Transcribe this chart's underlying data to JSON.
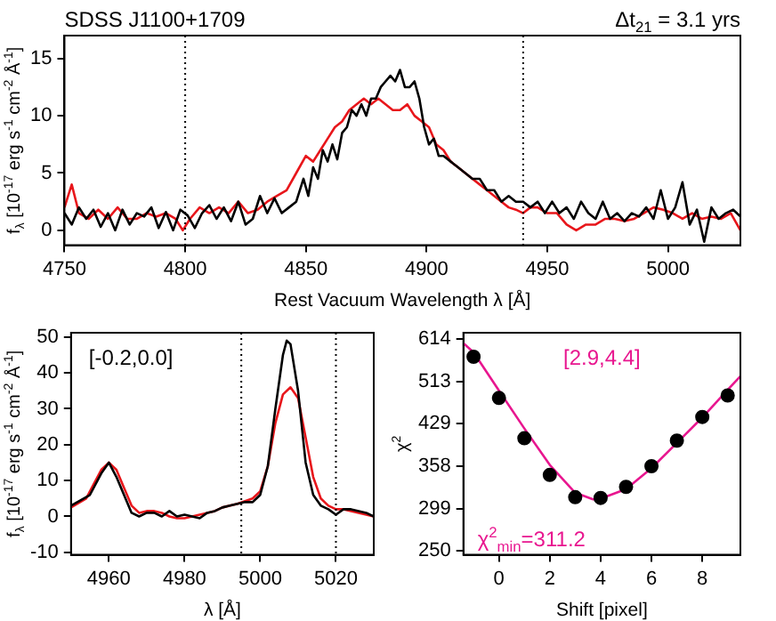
{
  "chart_data": [
    {
      "type": "line",
      "title": "SDSS J1100+1709",
      "xlabel": "Rest Vacuum Wavelength λ [Å]",
      "ylabel": "f$_{λ}$ [10$^{-17}$ erg s$^{-1}$ cm$^{-2}$ Å$^{-1}$]",
      "annotations": [
        "Δt$_{21}$ = 3.1 yrs"
      ],
      "xlim": [
        4750,
        5030
      ],
      "xticks": [
        4750,
        4800,
        4850,
        4900,
        4950,
        5000
      ],
      "ylim": [
        -1.3,
        17
      ],
      "yticks": [
        0,
        5,
        10,
        15
      ],
      "grid": false,
      "legend": false,
      "line_style": "solid",
      "ref_lines": [
        {
          "axis": "x",
          "value": 4800,
          "line_style": "dotted"
        },
        {
          "axis": "x",
          "value": 4940,
          "line_style": "dotted"
        }
      ],
      "series": [
        {
          "color": "#000000",
          "x": [
            4750,
            4753,
            4756,
            4759,
            4762,
            4765,
            4768,
            4771,
            4774,
            4777,
            4780,
            4783,
            4786,
            4789,
            4792,
            4795,
            4798,
            4801,
            4804,
            4807,
            4810,
            4813,
            4816,
            4819,
            4822,
            4825,
            4828,
            4831,
            4834,
            4837,
            4840,
            4843,
            4846,
            4849,
            4851,
            4853,
            4855,
            4857,
            4859,
            4861,
            4863,
            4865,
            4867,
            4869,
            4871,
            4873,
            4875,
            4877,
            4879,
            4881,
            4883,
            4885,
            4887,
            4889,
            4891,
            4893,
            4895,
            4897,
            4899,
            4901,
            4903,
            4905,
            4907,
            4910,
            4913,
            4916,
            4919,
            4922,
            4925,
            4928,
            4931,
            4934,
            4937,
            4940,
            4943,
            4946,
            4949,
            4952,
            4955,
            4958,
            4961,
            4964,
            4967,
            4970,
            4973,
            4976,
            4979,
            4982,
            4985,
            4988,
            4991,
            4994,
            4997,
            5000,
            5003,
            5006,
            5009,
            5012,
            5015,
            5018,
            5021,
            5024,
            5027,
            5030
          ],
          "values": [
            1.5,
            0.5,
            2,
            1,
            1.8,
            0.3,
            1.5,
            0,
            1.8,
            0.5,
            1.5,
            1.2,
            2,
            0.2,
            1.6,
            0,
            1.8,
            1.3,
            0.2,
            1.5,
            2.2,
            1,
            2,
            0.8,
            2.5,
            0.5,
            1,
            3,
            1.5,
            2.8,
            1.5,
            2,
            2.5,
            4.5,
            3,
            5.5,
            4.5,
            7,
            6,
            7.5,
            6.2,
            8.5,
            9,
            10.5,
            10,
            11,
            10,
            11.5,
            11.5,
            12.5,
            13,
            13.5,
            13,
            14,
            12.5,
            12.5,
            13,
            11.5,
            9,
            7.5,
            8,
            6.5,
            6.5,
            6,
            5.5,
            5,
            4.5,
            4.5,
            3.5,
            3.5,
            2.5,
            3,
            2.5,
            2.5,
            2,
            2.5,
            1.5,
            2.5,
            1.5,
            2,
            1,
            2.5,
            1.5,
            1,
            2.5,
            1,
            1.5,
            0.8,
            1.5,
            1.2,
            2,
            1,
            3.5,
            1,
            2,
            4.2,
            0.5,
            1.8,
            -1,
            2,
            1,
            1.5,
            1.8,
            1.2
          ]
        },
        {
          "color": "#e8161b",
          "x": [
            4750,
            4753,
            4756,
            4760,
            4764,
            4768,
            4772,
            4776,
            4780,
            4784,
            4788,
            4792,
            4796,
            4799,
            4802,
            4806,
            4810,
            4814,
            4818,
            4822,
            4826,
            4830,
            4834,
            4838,
            4842,
            4846,
            4850,
            4853,
            4856,
            4859,
            4862,
            4865,
            4868,
            4871,
            4874,
            4877,
            4880,
            4883,
            4886,
            4889,
            4892,
            4895,
            4898,
            4901,
            4904,
            4907,
            4910,
            4913,
            4916,
            4919,
            4922,
            4925,
            4928,
            4931,
            4934,
            4937,
            4940,
            4943,
            4946,
            4950,
            4954,
            4958,
            4962,
            4966,
            4970,
            4974,
            4978,
            4982,
            4986,
            4990,
            4994,
            4998,
            5002,
            5006,
            5010,
            5014,
            5018,
            5022,
            5026,
            5030
          ],
          "values": [
            2,
            4,
            1.5,
            1,
            1.8,
            1,
            2,
            1,
            1,
            1.5,
            1.2,
            1.5,
            1,
            0,
            1,
            2,
            1.5,
            2,
            1.5,
            2.5,
            1.5,
            1.8,
            2.5,
            3,
            3.5,
            5,
            6.5,
            6,
            7,
            8,
            9,
            9.5,
            10.5,
            11,
            11.5,
            11,
            11.5,
            11,
            10.5,
            10.5,
            11,
            10,
            9.5,
            9,
            7.5,
            7,
            6,
            5.5,
            5,
            4.5,
            4,
            3.5,
            3,
            2.5,
            2,
            1.8,
            1.5,
            2,
            2,
            1.5,
            1.5,
            0.5,
            0,
            0.5,
            0.5,
            1,
            1,
            0.8,
            1,
            1.5,
            2,
            1.8,
            1.5,
            1,
            1.5,
            1,
            1.2,
            1,
            1.5,
            0
          ]
        }
      ]
    },
    {
      "type": "line",
      "xlabel": "λ [Å]",
      "ylabel": "f$_{λ}$ [10$^{-17}$ erg s$^{-1}$ cm$^{-2}$ Å$^{-1}$]",
      "annotations": [
        "[-0.2,0.0]"
      ],
      "xlim": [
        4950,
        5030
      ],
      "xticks": [
        4960,
        4980,
        5000,
        5020
      ],
      "ylim": [
        -10.7,
        51.2
      ],
      "yticks": [
        -10,
        0,
        10,
        20,
        30,
        40,
        50
      ],
      "grid": false,
      "legend": false,
      "line_style": "solid",
      "ref_lines": [
        {
          "axis": "x",
          "value": 4995,
          "line_style": "dotted"
        },
        {
          "axis": "x",
          "value": 5020,
          "line_style": "dotted"
        }
      ],
      "series": [
        {
          "color": "#000000",
          "x": [
            4950,
            4955,
            4958,
            4960,
            4962,
            4964,
            4966,
            4968,
            4970,
            4972,
            4974,
            4976,
            4978,
            4980,
            4982,
            4984,
            4986,
            4988,
            4990,
            4992,
            4994,
            4996,
            4998,
            5000,
            5002,
            5004,
            5006,
            5007,
            5008,
            5010,
            5012,
            5014,
            5016,
            5018,
            5020,
            5022,
            5024,
            5026,
            5028,
            5030
          ],
          "values": [
            3,
            6,
            12,
            15,
            11,
            6,
            1,
            0,
            1,
            1,
            0,
            1.5,
            0,
            0.5,
            0,
            -0.5,
            1,
            1.5,
            2.5,
            3,
            3.5,
            4,
            4,
            6,
            14,
            30,
            45,
            49,
            48,
            35,
            15,
            6,
            3,
            2,
            0.5,
            2,
            2,
            1.5,
            1,
            0
          ]
        },
        {
          "color": "#e8161b",
          "x": [
            4950,
            4954,
            4956,
            4958,
            4960,
            4962,
            4964,
            4966,
            4968,
            4970,
            4972,
            4974,
            4976,
            4978,
            4980,
            4982,
            4984,
            4986,
            4988,
            4990,
            4994,
            4998,
            5000,
            5002,
            5004,
            5006,
            5008,
            5010,
            5012,
            5014,
            5016,
            5018,
            5020,
            5022,
            5024,
            5026,
            5028,
            5030
          ],
          "values": [
            2.5,
            5,
            9,
            13,
            15,
            13,
            8,
            3,
            1,
            1.5,
            1.5,
            1,
            0,
            -0.5,
            -0.5,
            0,
            0.5,
            1,
            1.5,
            2.5,
            3.5,
            5,
            7,
            14,
            26,
            34,
            36,
            33,
            22,
            11,
            5,
            3,
            2,
            2,
            1.5,
            1,
            0.5,
            0
          ]
        }
      ]
    },
    {
      "type": "scatter",
      "xlabel": "Shift [pixel]",
      "ylabel": "χ$^{2}$",
      "annotations": [
        "[2.9,4.4]",
        "χ$^{2}$$_{min}$=311.2"
      ],
      "xlim": [
        -1.4,
        9.5
      ],
      "xticks": [
        0,
        2,
        4,
        6,
        8
      ],
      "ylim": [
        246,
        630
      ],
      "yticks": [
        250,
        299,
        358,
        429,
        513,
        614
      ],
      "log": "y",
      "grid": false,
      "legend": false,
      "marker": "circle",
      "series": [
        {
          "color": "#000000",
          "x": [
            -1,
            0,
            1,
            2,
            3,
            4,
            5,
            6,
            7,
            8,
            9
          ],
          "values": [
            569,
            478,
            403,
            345,
            314,
            313,
            328,
            358,
            399,
            441,
            483
          ]
        },
        {
          "type": "line",
          "marker": "none",
          "color": "#e8168f",
          "x": [
            -1.4,
            -1,
            0,
            1,
            2,
            3,
            3.7,
            4,
            5,
            6,
            7,
            8,
            9,
            9.5
          ],
          "values": [
            603,
            580,
            493,
            420,
            360,
            320,
            311.2,
            312,
            325,
            355,
            395,
            440,
            495,
            524
          ]
        }
      ]
    }
  ]
}
